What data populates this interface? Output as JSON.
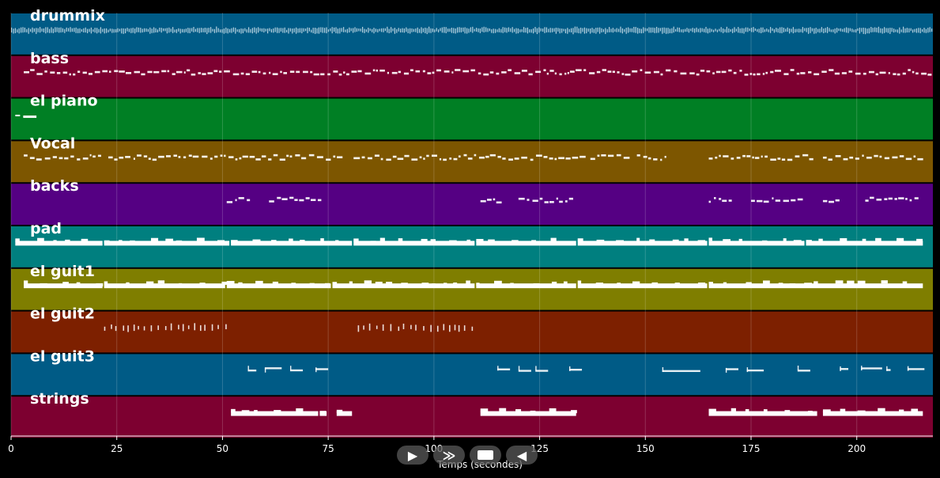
{
  "chart_data": {
    "type": "timeline",
    "xlabel": "Temps (secondes)",
    "xlim": [
      0,
      218
    ],
    "xticks": [
      0,
      25,
      50,
      75,
      100,
      125,
      150,
      175,
      200
    ],
    "grid": true,
    "tracks": [
      {
        "name": "drummix",
        "color": "#005b86",
        "style": "dense",
        "segments": [
          [
            0,
            218
          ]
        ]
      },
      {
        "name": "bass",
        "color": "#7d0030",
        "style": "notes",
        "segments": [
          [
            3,
            218
          ]
        ]
      },
      {
        "name": "el piano",
        "color": "#007f24",
        "style": "block",
        "segments": [
          [
            1,
            6
          ]
        ]
      },
      {
        "name": "Vocal",
        "color": "#7d5600",
        "style": "notes",
        "segments": [
          [
            3,
            21
          ],
          [
            23,
            78
          ],
          [
            81,
            135
          ],
          [
            137,
            146
          ],
          [
            148,
            155
          ],
          [
            165,
            190
          ],
          [
            192,
            216
          ]
        ]
      },
      {
        "name": "backs",
        "color": "#550083",
        "style": "notes",
        "segments": [
          [
            51,
            56
          ],
          [
            61,
            67
          ],
          [
            67,
            73
          ],
          [
            111,
            115
          ],
          [
            120,
            132
          ],
          [
            165,
            170
          ],
          [
            175,
            187
          ],
          [
            192,
            196
          ],
          [
            202,
            214
          ]
        ]
      },
      {
        "name": "pad",
        "color": "#007f7f",
        "style": "thick",
        "segments": [
          [
            1,
            22
          ],
          [
            22,
            52
          ],
          [
            52,
            81
          ],
          [
            81,
            110
          ],
          [
            110,
            134
          ],
          [
            134,
            165
          ],
          [
            165,
            188
          ],
          [
            188,
            216
          ]
        ]
      },
      {
        "name": "el guit1",
        "color": "#7f7e00",
        "style": "thick",
        "segments": [
          [
            3,
            22
          ],
          [
            22,
            51
          ],
          [
            51,
            76
          ],
          [
            76,
            110
          ],
          [
            110,
            134
          ],
          [
            134,
            165
          ],
          [
            165,
            216
          ]
        ]
      },
      {
        "name": "el guit2",
        "color": "#7d2000",
        "style": "ticks",
        "segments": [
          [
            22,
            51
          ],
          [
            82,
            110
          ]
        ]
      },
      {
        "name": "el guit3",
        "color": "#005b86",
        "style": "phrases",
        "segments": [
          [
            56,
            58
          ],
          [
            60,
            64
          ],
          [
            66,
            69
          ],
          [
            72,
            75
          ],
          [
            115,
            118
          ],
          [
            120,
            123
          ],
          [
            124,
            127
          ],
          [
            132,
            135
          ],
          [
            154,
            163
          ],
          [
            169,
            172
          ],
          [
            174,
            178
          ],
          [
            186,
            189
          ],
          [
            196,
            198
          ],
          [
            201,
            206
          ],
          [
            207,
            208
          ],
          [
            212,
            216
          ]
        ]
      },
      {
        "name": "strings",
        "color": "#7d0030",
        "style": "thick",
        "segments": [
          [
            52,
            73
          ],
          [
            73,
            75
          ],
          [
            77,
            81
          ],
          [
            111,
            134
          ],
          [
            165,
            191
          ],
          [
            192,
            216
          ]
        ]
      }
    ]
  },
  "transport": {
    "play_label": "▶",
    "forward_label": "≫",
    "back_label": "◀"
  }
}
